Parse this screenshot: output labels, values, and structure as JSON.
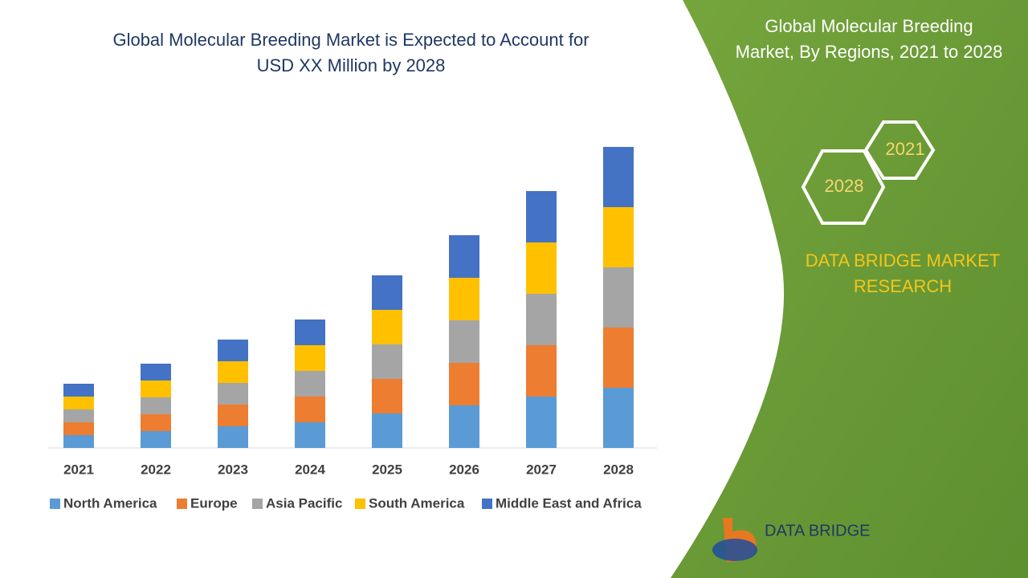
{
  "chart_data": {
    "type": "stacked-bar",
    "title": [
      "Global Molecular Breeding Market is Expected to Account for",
      "USD XX Million by 2028"
    ],
    "categories": [
      "2021",
      "2022",
      "2023",
      "2024",
      "2025",
      "2026",
      "2027",
      "2028"
    ],
    "series": [
      {
        "name": "North America",
        "color": "#5b9bd5",
        "values": [
          16,
          21,
          27,
          32,
          43,
          53,
          64,
          75
        ]
      },
      {
        "name": "Europe",
        "color": "#ed7d31",
        "values": [
          16,
          21,
          27,
          32,
          43,
          53,
          64,
          75
        ]
      },
      {
        "name": "Asia Pacific",
        "color": "#a5a5a5",
        "values": [
          16,
          21,
          27,
          32,
          43,
          53,
          64,
          75
        ]
      },
      {
        "name": "South America",
        "color": "#ffc000",
        "values": [
          16,
          21,
          27,
          32,
          43,
          53,
          64,
          75
        ]
      },
      {
        "name": "Middle East and Africa",
        "color": "#4472c4",
        "values": [
          16,
          21,
          27,
          32,
          43,
          53,
          64,
          75
        ]
      }
    ],
    "legend": "bottom"
  },
  "panel": {
    "title": [
      "Global Molecular Breeding",
      "Market, By Regions, 2021 to 2028"
    ],
    "hexagons": [
      "2021",
      "2028"
    ],
    "brand": [
      "DATA BRIDGE MARKET",
      "RESEARCH"
    ],
    "logo": "DATA BRIDGE"
  }
}
